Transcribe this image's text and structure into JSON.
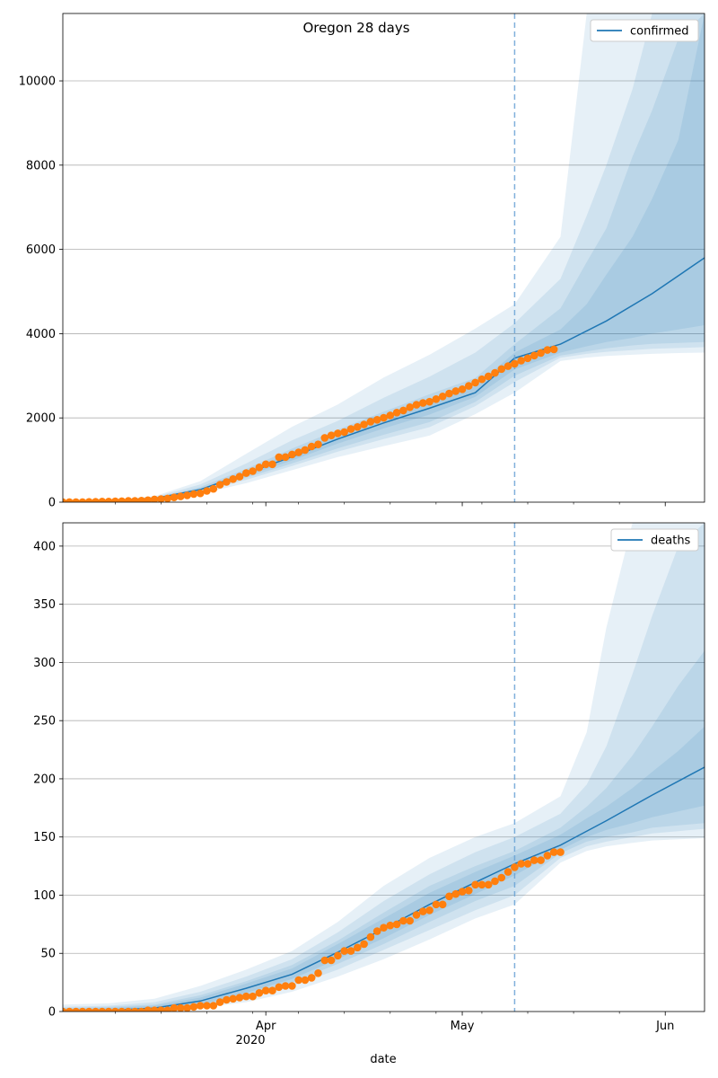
{
  "figure": {
    "title": "Oregon 28 days",
    "x_label": "date",
    "x_tick_labels": [
      "Apr",
      "May",
      "Jun"
    ],
    "x_year_label": "2020",
    "forecast_start": "2020-05-09"
  },
  "colors": {
    "model_line": "#1f77b4",
    "observed_points": "#ff7f0e",
    "band_fill": "#1f77b4",
    "grid": "#b0b0b0",
    "forecast_marker": "#6aa3d5"
  },
  "chart_data": [
    {
      "type": "line",
      "legend": "confirmed",
      "legend_position": "top-right",
      "grid": "horizontal",
      "x_axis": {
        "type": "date",
        "start": "2020-03-01",
        "end": "2020-06-07",
        "major_ticks": [
          "2020-04-01",
          "2020-05-01",
          "2020-06-01"
        ]
      },
      "ylim": [
        0,
        11600
      ],
      "y_ticks": [
        0,
        2000,
        4000,
        6000,
        8000,
        10000
      ],
      "median": {
        "dates": [
          "2020-03-01",
          "2020-03-08",
          "2020-03-15",
          "2020-03-22",
          "2020-03-29",
          "2020-04-05",
          "2020-04-12",
          "2020-04-19",
          "2020-04-26",
          "2020-05-03",
          "2020-05-09",
          "2020-05-16",
          "2020-05-23",
          "2020-05-30",
          "2020-06-07"
        ],
        "values": [
          5,
          25,
          90,
          300,
          680,
          1080,
          1500,
          1880,
          2230,
          2600,
          3420,
          3750,
          4300,
          4950,
          5800
        ]
      },
      "bands": {
        "dates": [
          "2020-03-01",
          "2020-03-08",
          "2020-03-15",
          "2020-03-22",
          "2020-03-29",
          "2020-04-05",
          "2020-04-12",
          "2020-04-19",
          "2020-04-26",
          "2020-05-03",
          "2020-05-09",
          "2020-05-16",
          "2020-05-20",
          "2020-05-23",
          "2020-05-27",
          "2020-05-30",
          "2020-06-03",
          "2020-06-07"
        ],
        "outer_low": [
          0,
          10,
          60,
          200,
          450,
          760,
          1070,
          1330,
          1580,
          2090,
          2600,
          3350,
          3430,
          3470,
          3500,
          3520,
          3540,
          3550
        ],
        "outer_high": [
          20,
          50,
          140,
          500,
          1150,
          1790,
          2320,
          2960,
          3500,
          4120,
          4700,
          6300,
          11600,
          11600,
          11600,
          11600,
          11600,
          11600
        ],
        "mid_low": [
          2,
          15,
          70,
          240,
          530,
          860,
          1200,
          1500,
          1780,
          2280,
          2850,
          3430,
          3520,
          3570,
          3610,
          3640,
          3660,
          3680
        ],
        "mid_high": [
          12,
          40,
          120,
          420,
          920,
          1470,
          1930,
          2480,
          2980,
          3550,
          4250,
          5300,
          6800,
          8000,
          9800,
          11600,
          11600,
          11600
        ],
        "inner_low": [
          3,
          18,
          78,
          260,
          580,
          920,
          1280,
          1600,
          1900,
          2380,
          3000,
          3480,
          3580,
          3650,
          3720,
          3760,
          3780,
          3800
        ],
        "inner_high": [
          8,
          32,
          105,
          360,
          790,
          1270,
          1720,
          2150,
          2560,
          2950,
          3750,
          4600,
          5700,
          6500,
          8200,
          9300,
          11000,
          11600
        ],
        "core_low": [
          4,
          22,
          85,
          280,
          630,
          990,
          1390,
          1750,
          2080,
          2500,
          3150,
          3550,
          3700,
          3800,
          3900,
          4000,
          4100,
          4200
        ],
        "core_high": [
          7,
          28,
          95,
          320,
          730,
          1180,
          1620,
          2010,
          2400,
          2750,
          3550,
          4100,
          4700,
          5400,
          6300,
          7200,
          8600,
          11600
        ]
      },
      "observed": {
        "start": "2020-03-01",
        "values": [
          3,
          3,
          3,
          3,
          7,
          9,
          14,
          15,
          19,
          24,
          30,
          32,
          36,
          47,
          66,
          75,
          88,
          114,
          137,
          161,
          191,
          209,
          266,
          316,
          414,
          479,
          548,
          606,
          690,
          736,
          826,
          899,
          900,
          1068,
          1071,
          1132,
          1181,
          1239,
          1321,
          1371,
          1527,
          1584,
          1633,
          1663,
          1736,
          1785,
          1844,
          1910,
          1956,
          2002,
          2059,
          2127,
          2177,
          2253,
          2311,
          2354,
          2385,
          2446,
          2510,
          2579,
          2635,
          2680,
          2759,
          2839,
          2916,
          2987,
          3068,
          3160,
          3228,
          3286,
          3358,
          3416,
          3479,
          3541,
          3612,
          3627
        ]
      }
    },
    {
      "type": "line",
      "legend": "deaths",
      "legend_position": "top-right",
      "grid": "horizontal",
      "x_axis": {
        "type": "date",
        "start": "2020-03-01",
        "end": "2020-06-07",
        "major_ticks": [
          "2020-04-01",
          "2020-05-01",
          "2020-06-01"
        ]
      },
      "ylim": [
        0,
        420
      ],
      "y_ticks": [
        0,
        50,
        100,
        150,
        200,
        250,
        300,
        350,
        400
      ],
      "median": {
        "dates": [
          "2020-03-01",
          "2020-03-08",
          "2020-03-15",
          "2020-03-22",
          "2020-03-29",
          "2020-04-05",
          "2020-04-12",
          "2020-04-19",
          "2020-04-26",
          "2020-05-03",
          "2020-05-09",
          "2020-05-16",
          "2020-05-23",
          "2020-05-30",
          "2020-06-07"
        ],
        "values": [
          0.5,
          1,
          3,
          9,
          20,
          32,
          51,
          71,
          92,
          111,
          127,
          143,
          164,
          186,
          210
        ]
      },
      "bands": {
        "dates": [
          "2020-03-01",
          "2020-03-08",
          "2020-03-15",
          "2020-03-22",
          "2020-03-29",
          "2020-04-05",
          "2020-04-12",
          "2020-04-19",
          "2020-04-26",
          "2020-05-03",
          "2020-05-09",
          "2020-05-16",
          "2020-05-20",
          "2020-05-23",
          "2020-05-27",
          "2020-05-30",
          "2020-06-03",
          "2020-06-07"
        ],
        "outer_low": [
          0,
          0,
          1,
          3,
          8,
          17,
          30,
          45,
          62,
          80,
          92,
          128,
          138,
          142,
          145,
          147,
          148,
          149
        ],
        "outer_high": [
          6,
          7,
          11,
          22,
          36,
          52,
          77,
          108,
          132,
          150,
          162,
          185,
          240,
          330,
          420,
          420,
          420,
          420
        ],
        "mid_low": [
          0,
          0,
          1,
          4,
          11,
          22,
          36,
          53,
          70,
          87,
          100,
          132,
          142,
          146,
          150,
          153,
          155,
          157
        ],
        "mid_high": [
          4,
          5,
          8,
          17,
          30,
          45,
          68,
          95,
          118,
          137,
          150,
          170,
          195,
          228,
          290,
          340,
          400,
          420
        ],
        "inner_low": [
          0,
          0,
          1,
          5,
          13,
          25,
          41,
          58,
          77,
          95,
          108,
          136,
          146,
          150,
          154,
          158,
          160,
          162
        ],
        "inner_high": [
          3,
          4,
          6,
          14,
          26,
          40,
          61,
          85,
          108,
          125,
          138,
          158,
          176,
          192,
          220,
          245,
          280,
          310
        ],
        "core_low": [
          0,
          0.5,
          2,
          6,
          16,
          28,
          45,
          63,
          83,
          101,
          117,
          139,
          150,
          156,
          162,
          167,
          172,
          177
        ],
        "core_high": [
          2,
          3,
          5,
          12,
          24,
          37,
          58,
          80,
          102,
          120,
          134,
          152,
          166,
          176,
          192,
          206,
          224,
          245
        ]
      },
      "observed": {
        "start": "2020-03-01",
        "values": [
          0,
          0,
          0,
          0,
          0,
          0,
          0,
          0,
          0,
          0,
          0,
          0,
          0,
          1,
          1,
          1,
          1,
          3,
          3,
          3,
          4,
          5,
          5,
          5,
          8,
          10,
          11,
          12,
          13,
          13,
          16,
          18,
          18,
          21,
          22,
          22,
          27,
          27,
          29,
          33,
          44,
          44,
          48,
          52,
          52,
          55,
          58,
          64,
          69,
          72,
          74,
          75,
          78,
          78,
          83,
          86,
          87,
          92,
          92,
          99,
          101,
          103,
          104,
          109,
          109,
          109,
          112,
          115,
          120,
          124,
          127,
          127,
          130,
          130,
          134,
          137,
          137
        ]
      }
    }
  ]
}
